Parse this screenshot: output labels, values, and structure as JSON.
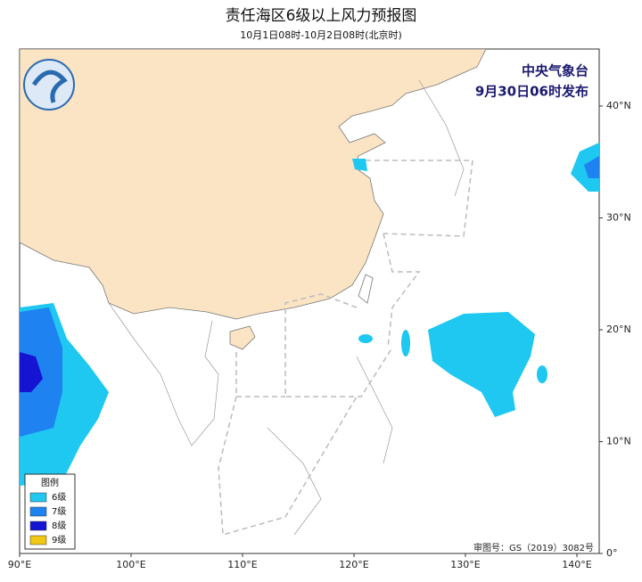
{
  "header": {
    "title": "责任海区6级以上风力预报图",
    "subtitle": "10月1日08时-10月2日08时(北京时)"
  },
  "issuer": {
    "name": "中央气象台",
    "time": "9月30日06时发布"
  },
  "legend": {
    "title": "图例",
    "items": [
      {
        "label": "6级",
        "color": "#1ec8f0"
      },
      {
        "label": "7级",
        "color": "#1e82f0"
      },
      {
        "label": "8级",
        "color": "#1414d2"
      },
      {
        "label": "9级",
        "color": "#f0c814"
      }
    ]
  },
  "axes": {
    "lon_ticks": [
      {
        "value": 90,
        "label": "90°E"
      },
      {
        "value": 100,
        "label": "100°E"
      },
      {
        "value": 110,
        "label": "110°E"
      },
      {
        "value": 120,
        "label": "120°E"
      },
      {
        "value": 130,
        "label": "130°E"
      },
      {
        "value": 140,
        "label": "140°E"
      }
    ],
    "lat_ticks": [
      {
        "value": 40,
        "label": "40°N"
      },
      {
        "value": 30,
        "label": "30°N"
      },
      {
        "value": 20,
        "label": "20°N"
      },
      {
        "value": 10,
        "label": "10°N"
      },
      {
        "value": 0,
        "label": "0°"
      }
    ]
  },
  "footer": {
    "approval": "审图号：GS（2019）3082号"
  }
}
